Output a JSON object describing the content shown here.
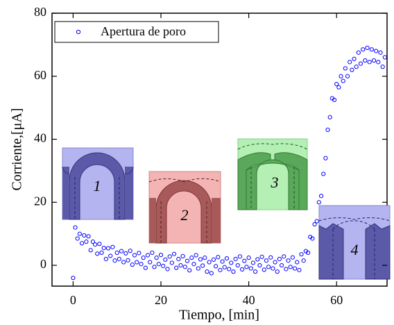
{
  "chart_data": {
    "type": "scatter",
    "xlabel": "Tiempo, [min]",
    "ylabel": "Corriente,[μA]",
    "xlim": [
      -4.8,
      71.5
    ],
    "ylim": [
      -6.6,
      80
    ],
    "xticks": [
      0,
      20,
      40,
      60
    ],
    "yticks": [
      0,
      20,
      40,
      60,
      80
    ],
    "legend": "upper left",
    "annotations": [
      "1",
      "2",
      "3",
      "4"
    ],
    "series": [
      {
        "name": "Apertura de poro",
        "color": "#0000ff",
        "x": [
          0,
          0.5,
          1,
          1.5,
          2,
          2.5,
          3,
          3.5,
          4,
          4.5,
          5,
          5.5,
          6,
          6.5,
          7,
          7.5,
          8,
          8.5,
          9,
          9.5,
          10,
          10.5,
          11,
          11.5,
          12,
          12.5,
          13,
          13.5,
          14,
          14.5,
          15,
          15.5,
          16,
          16.5,
          17,
          17.5,
          18,
          18.5,
          19,
          19.5,
          20,
          20.5,
          21,
          21.5,
          22,
          22.5,
          23,
          23.5,
          24,
          24.5,
          25,
          25.5,
          26,
          26.5,
          27,
          27.5,
          28,
          28.5,
          29,
          29.5,
          30,
          30.5,
          31,
          31.5,
          32,
          32.5,
          33,
          33.5,
          34,
          34.5,
          35,
          35.5,
          36,
          36.5,
          37,
          37.5,
          38,
          38.5,
          39,
          39.5,
          40,
          40.5,
          41,
          41.5,
          42,
          42.5,
          43,
          43.5,
          44,
          44.5,
          45,
          45.5,
          46,
          46.5,
          47,
          47.5,
          48,
          48.5,
          49,
          49.5,
          50,
          50.5,
          51,
          51.5,
          52,
          52.5,
          53,
          53.5,
          54,
          54.5,
          55,
          55.5,
          56,
          56.5,
          57,
          57.5,
          58,
          58.5,
          59,
          59.5,
          60,
          60.5,
          61,
          61.5,
          62,
          62.5,
          63,
          63.5,
          64,
          64.5,
          65,
          65.5,
          66,
          66.5,
          67,
          67.5,
          68,
          68.5,
          69,
          69.5,
          70,
          70.5,
          71
        ],
        "values": [
          -4,
          12,
          8.5,
          10,
          7,
          9.5,
          7.5,
          9.2,
          4.8,
          7.5,
          6.6,
          3.7,
          6.8,
          4,
          5.5,
          2,
          5.4,
          3,
          5.8,
          1.5,
          4,
          2,
          4.5,
          1,
          3.8,
          1.6,
          4.6,
          0.2,
          3.2,
          1,
          3.9,
          0.4,
          2.4,
          -0.8,
          3.2,
          1,
          4,
          -0.5,
          2.4,
          0.4,
          3.3,
          -0.2,
          1.8,
          -1.2,
          2.8,
          0.8,
          3.6,
          -0.8,
          2,
          0,
          2.9,
          -0.5,
          1.4,
          -1.6,
          2.4,
          0.4,
          3.2,
          -1,
          1.9,
          -0.1,
          2.4,
          -2,
          1,
          -2.5,
          1.8,
          -0.3,
          2.6,
          -1.5,
          1.2,
          -0.6,
          2.2,
          -1.2,
          0.8,
          -2,
          2,
          0,
          2.8,
          -1.3,
          1.4,
          -0.5,
          2.4,
          -1,
          0.8,
          -2,
          1.9,
          0,
          2.7,
          -1.4,
          1.5,
          -0.5,
          2.5,
          -1,
          1,
          -2,
          2,
          0,
          2.8,
          -1.2,
          1.5,
          -0.5,
          2.5,
          -1,
          1,
          -1.5,
          3.5,
          1.5,
          4.5,
          4,
          9,
          8.5,
          13,
          14,
          20,
          22,
          29,
          34,
          43,
          47,
          53,
          52.5,
          57.5,
          56.5,
          60,
          58.5,
          62.5,
          60,
          64.5,
          62,
          65.5,
          63,
          67.5,
          64,
          68.5,
          65,
          69,
          64.5,
          68.5,
          65,
          68,
          64.5,
          67.5,
          63,
          66
        ]
      }
    ]
  }
}
